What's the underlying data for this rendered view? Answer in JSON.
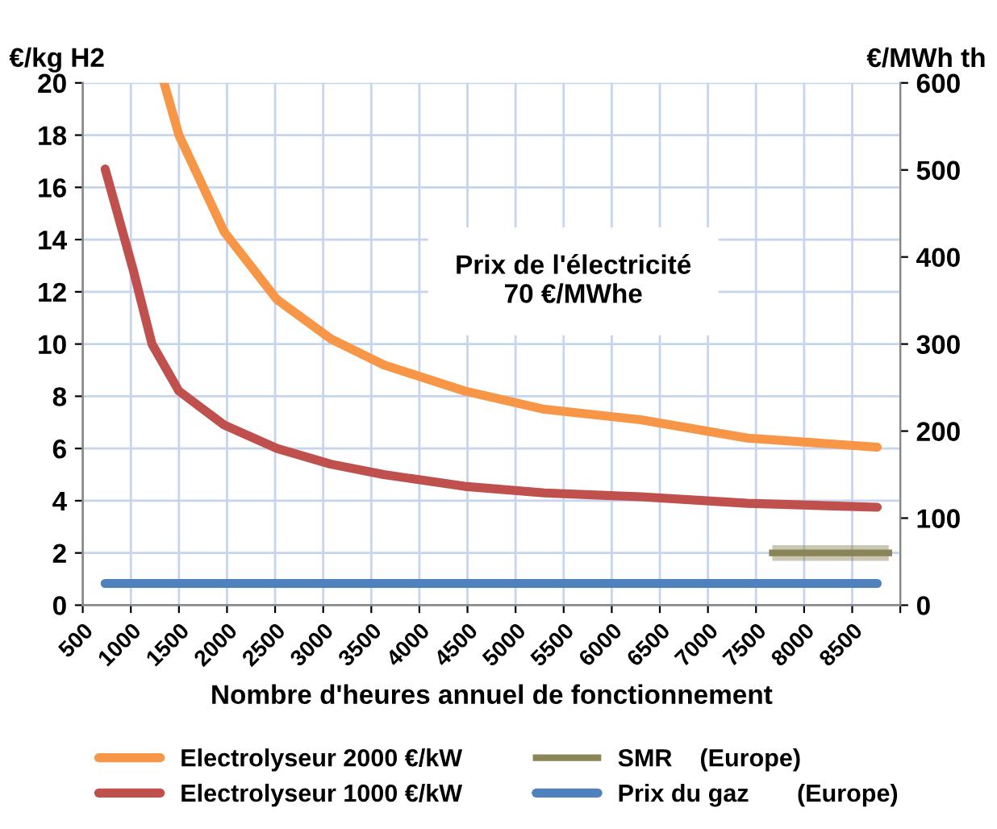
{
  "chart_data": {
    "type": "line",
    "xlabel": "Nombre d'heures annuel de fonctionnement",
    "ylabel": "€/kg H2",
    "y2label": "€/MWh th",
    "annotations": [
      "Prix de l'électricité\n70 €/MWhe"
    ],
    "xlim": [
      500,
      9000
    ],
    "xticks": [
      500,
      1000,
      1500,
      2000,
      2500,
      3000,
      3500,
      4000,
      4500,
      5000,
      5500,
      6000,
      6500,
      7000,
      7500,
      8000,
      8500,
      {
        "value": 9000,
        "label": null
      }
    ],
    "ylim": [
      0,
      20
    ],
    "yticks": [
      0,
      2,
      4,
      6,
      8,
      10,
      12,
      14,
      16,
      18,
      20
    ],
    "y2lim": [
      0,
      600
    ],
    "y2ticks": [
      0,
      100,
      200,
      300,
      400,
      500,
      600
    ],
    "grid": true,
    "legend": "bottom",
    "marker": "none",
    "line_style": "solid",
    "series": [
      {
        "name": "Electrolyseur 2000 €/kW",
        "color": "#f79646",
        "x": [
          1345,
          1500,
          1970,
          2520,
          3080,
          3630,
          4470,
          5300,
          6300,
          7410,
          8760
        ],
        "values": [
          20,
          18.0,
          14.3,
          11.7,
          10.2,
          9.2,
          8.2,
          7.5,
          7.1,
          6.4,
          6.05
        ]
      },
      {
        "name": "Electrolyseur 1000 €/kW",
        "color": "#c0504d",
        "x": [
          733,
          1020,
          1220,
          1500,
          1970,
          2520,
          3080,
          3630,
          4470,
          5300,
          6300,
          7410,
          8760
        ],
        "values": [
          16.7,
          12.9,
          10.0,
          8.2,
          6.9,
          6.0,
          5.4,
          5.0,
          4.55,
          4.3,
          4.15,
          3.9,
          3.75
        ]
      },
      {
        "name": "SMR    (Europe)",
        "color": "#8a8559",
        "x": [
          7670,
          8880
        ],
        "values": [
          2.0,
          2.0
        ],
        "lower": [
          1.7,
          1.7
        ],
        "upper": [
          2.3,
          2.3
        ]
      },
      {
        "name": "Prix du gaz       (Europe)",
        "color": "#4f81bd",
        "axis": "y2",
        "x": [
          733,
          8760
        ],
        "values": [
          25,
          25
        ]
      }
    ]
  }
}
